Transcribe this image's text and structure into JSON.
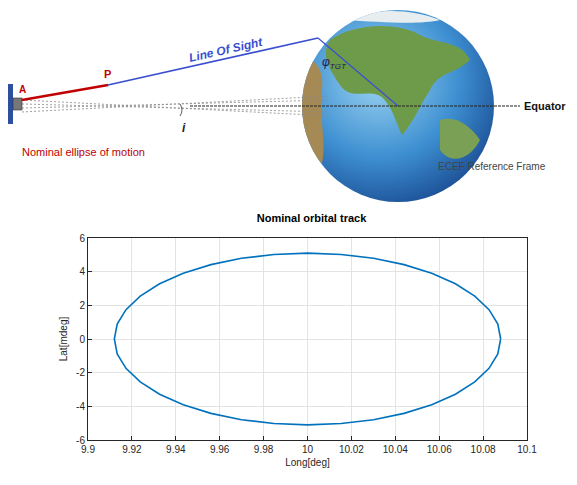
{
  "diagram": {
    "labels": {
      "satellite": "A",
      "point": "P",
      "line_of_sight": "Line Of Sight",
      "inclination": "i",
      "target_latitude": "φ",
      "target_latitude_subscript": "TGT",
      "equator": "Equator",
      "ellipse": "Nominal ellipse of motion",
      "frame": "ECEF Reference Frame"
    }
  },
  "chart_data": {
    "type": "line",
    "title": "Nominal orbital track",
    "x_label": "Long[deg]",
    "y_label": "Lat[mdeg]",
    "series": [
      {
        "color": "#0072bd",
        "line_style": "solid",
        "x": [
          10.088,
          10.0867,
          10.0827,
          10.0762,
          10.0674,
          10.0566,
          10.044,
          10.0301,
          10.0153,
          10.0,
          9.9847,
          9.9699,
          9.956,
          9.9434,
          9.9326,
          9.9238,
          9.9173,
          9.9133,
          9.912,
          9.9133,
          9.9173,
          9.9238,
          9.9326,
          9.9434,
          9.956,
          9.9699,
          9.9847,
          10.0,
          10.0153,
          10.0301,
          10.044,
          10.0566,
          10.0674,
          10.0762,
          10.0827,
          10.0867,
          10.088
        ],
        "values": [
          0,
          0.886,
          1.744,
          2.55,
          3.278,
          3.907,
          4.417,
          4.792,
          5.022,
          5.1,
          5.022,
          4.792,
          4.417,
          3.907,
          3.278,
          2.55,
          1.744,
          0.886,
          0,
          -0.886,
          -1.744,
          -2.55,
          -3.278,
          -3.907,
          -4.417,
          -4.792,
          -5.022,
          -5.1,
          -5.022,
          -4.792,
          -4.417,
          -3.907,
          -3.278,
          -2.55,
          -1.744,
          -0.886,
          0
        ]
      }
    ],
    "xlim": [
      9.9,
      10.1
    ],
    "xticks": [
      9.9,
      9.92,
      9.94,
      9.96,
      9.98,
      10,
      10.02,
      10.04,
      10.06,
      10.08,
      10.1
    ],
    "ylim": [
      -6,
      6
    ],
    "yticks": [
      -6,
      -4,
      -2,
      0,
      2,
      4,
      6
    ],
    "grid": true
  }
}
